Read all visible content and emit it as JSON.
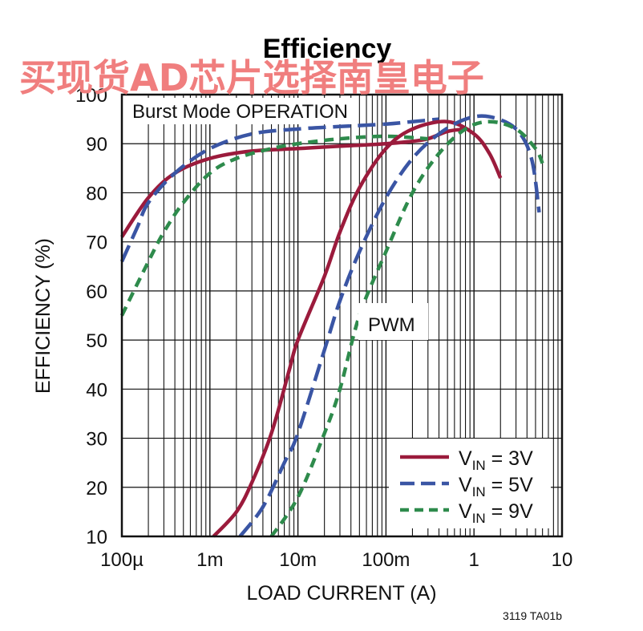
{
  "watermark": "买现货AD芯片选择南皇电子",
  "figure_id": "3119 TA01b",
  "chart_data": {
    "type": "line",
    "title": "Efficiency",
    "xlabel": "LOAD CURRENT (A)",
    "ylabel": "EFFICIENCY (%)",
    "xscale": "log",
    "xlim": [
      0.0001,
      10
    ],
    "ylim": [
      10,
      100
    ],
    "x_ticks": [
      0.0001,
      0.001,
      0.01,
      0.1,
      1,
      10
    ],
    "x_tick_labels": [
      "100µ",
      "1m",
      "10m",
      "100m",
      "1",
      "10"
    ],
    "y_ticks": [
      10,
      20,
      30,
      40,
      50,
      60,
      70,
      80,
      90,
      100
    ],
    "y_tick_labels": [
      "10",
      "20",
      "30",
      "40",
      "50",
      "60",
      "70",
      "80",
      "90",
      "100"
    ],
    "grid": true,
    "annotations": [
      "Burst Mode OPERATION",
      "PWM"
    ],
    "legend_position": "lower-right",
    "series": [
      {
        "name": "V_IN = 3V",
        "legend_main": "V",
        "legend_sub": "IN",
        "legend_rest": " = 3V",
        "color": "#9b1b3c",
        "dash": "solid",
        "group": "burst",
        "x": [
          0.0001,
          0.0002,
          0.0004,
          0.001,
          0.003,
          0.01,
          0.03,
          0.1,
          0.2,
          0.3,
          0.5,
          0.8
        ],
        "y": [
          71,
          79,
          84,
          87,
          88.5,
          89,
          89.5,
          90,
          90.5,
          91,
          92.5,
          93
        ]
      },
      {
        "name": "V_IN = 5V",
        "legend_main": "V",
        "legend_sub": "IN",
        "legend_rest": " = 5V",
        "color": "#3a55a4",
        "dash": "dashed",
        "group": "burst",
        "x": [
          0.0001,
          0.00015,
          0.0002,
          0.0004,
          0.001,
          0.003,
          0.01,
          0.03,
          0.1,
          0.2,
          0.4
        ],
        "y": [
          66,
          73,
          78,
          84,
          89,
          92,
          93,
          93.5,
          94,
          94.5,
          95
        ]
      },
      {
        "name": "V_IN = 9V",
        "legend_main": "V",
        "legend_sub": "IN",
        "legend_rest": " = 9V",
        "color": "#2e8b4c",
        "dash": "dashed",
        "group": "burst",
        "x": [
          0.0001,
          0.0002,
          0.0003,
          0.0005,
          0.001,
          0.002,
          0.005,
          0.01,
          0.03,
          0.1,
          0.3
        ],
        "y": [
          55,
          66,
          72,
          78,
          84,
          87,
          89,
          90,
          91,
          91.5,
          91
        ]
      },
      {
        "name": "V_IN = 3V PWM",
        "color": "#9b1b3c",
        "dash": "solid",
        "group": "pwm",
        "x": [
          0.0011,
          0.002,
          0.003,
          0.005,
          0.008,
          0.01,
          0.02,
          0.03,
          0.05,
          0.1,
          0.2,
          0.5,
          1,
          1.5,
          2
        ],
        "y": [
          10,
          15,
          21,
          31,
          44,
          50,
          63,
          72,
          81,
          89,
          93,
          94.5,
          92,
          88,
          83
        ]
      },
      {
        "name": "V_IN = 5V PWM",
        "color": "#3a55a4",
        "dash": "dashed",
        "group": "pwm",
        "x": [
          0.0022,
          0.004,
          0.007,
          0.01,
          0.02,
          0.03,
          0.05,
          0.1,
          0.2,
          0.4,
          0.8,
          1.5,
          3,
          4.5,
          5.5
        ],
        "y": [
          10,
          16,
          25,
          31,
          48,
          58,
          68,
          79,
          87,
          92,
          95,
          95.5,
          93,
          87,
          76
        ]
      },
      {
        "name": "V_IN = 9V PWM",
        "color": "#2e8b4c",
        "dash": "dashed",
        "group": "pwm",
        "x": [
          0.005,
          0.01,
          0.02,
          0.03,
          0.05,
          0.1,
          0.2,
          0.4,
          0.8,
          1.5,
          3,
          5,
          6
        ],
        "y": [
          10,
          18,
          31,
          40,
          55,
          68,
          80,
          88,
          93,
          94.5,
          93,
          89,
          86
        ]
      }
    ]
  }
}
